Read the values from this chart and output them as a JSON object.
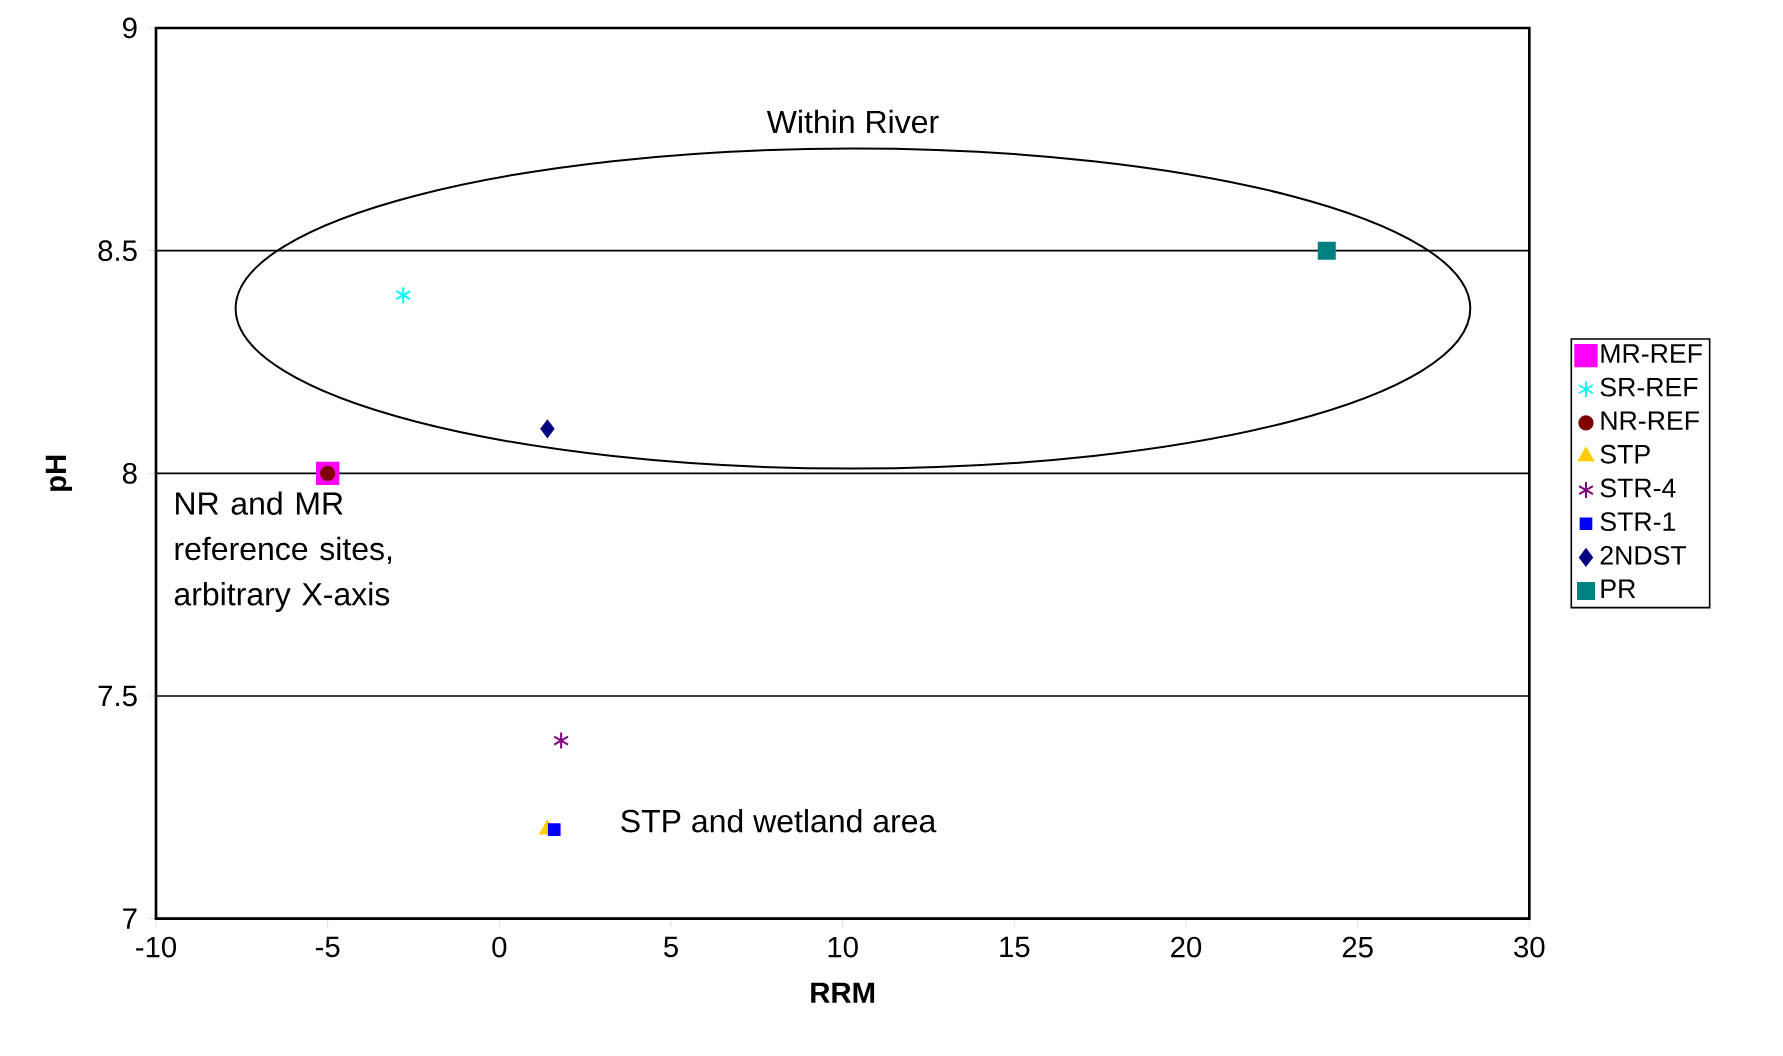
{
  "chart_data": {
    "type": "scatter",
    "xlabel": "RRM",
    "ylabel": "pH",
    "xlim": [
      -10,
      30
    ],
    "xticks": [
      -10,
      -5,
      0,
      5,
      10,
      15,
      20,
      25,
      30
    ],
    "ylim": [
      7,
      9
    ],
    "yticks": [
      7,
      7.5,
      8,
      8.5,
      9
    ],
    "grid": "y",
    "legend": "right",
    "annotations": [
      "Within River",
      "NR and MR reference sites, arbitrary X-axis",
      "STP and wetland area"
    ],
    "series": [
      {
        "name": "MR-REF",
        "color": "#ff00ff",
        "marker": "square",
        "x": [
          -5
        ],
        "values": [
          8.0
        ]
      },
      {
        "name": "SR-REF",
        "color": "#00ffff",
        "marker": "cross",
        "x": [
          -2.8
        ],
        "values": [
          8.4
        ]
      },
      {
        "name": "NR-REF",
        "color": "#800000",
        "marker": "circle",
        "x": [
          -5
        ],
        "values": [
          8.0
        ]
      },
      {
        "name": "STP",
        "color": "#ffcc00",
        "marker": "triangle",
        "x": [
          1.4
        ],
        "values": [
          7.2
        ]
      },
      {
        "name": "STR-4",
        "color": "#800080",
        "marker": "cross",
        "x": [
          1.8
        ],
        "values": [
          7.4
        ]
      },
      {
        "name": "STR-1",
        "color": "#0000ff",
        "marker": "square",
        "x": [
          1.6
        ],
        "values": [
          7.2
        ]
      },
      {
        "name": "2NDST",
        "color": "#000080",
        "marker": "diamond",
        "x": [
          1.4
        ],
        "values": [
          8.1
        ]
      },
      {
        "name": "PR",
        "color": "#008080",
        "marker": "square",
        "x": [
          24.1
        ],
        "values": [
          8.5
        ]
      }
    ]
  }
}
